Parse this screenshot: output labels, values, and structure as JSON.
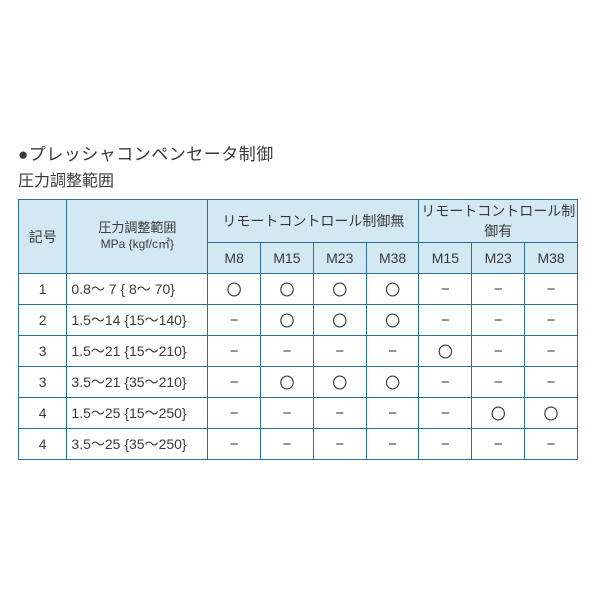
{
  "title": "●プレッシャコンペンセータ制御",
  "subtitle": "圧力調整範囲",
  "border_color": "#2d6e93",
  "header_bg": "#d2e8f2",
  "headers": {
    "code": "記号",
    "range_line1": "圧力調整範囲",
    "range_line2": "MPa {kgf/c㎡}",
    "group_no_remote": "リモートコントロール制御無",
    "group_remote": "リモートコントロール制御有",
    "sub_no_remote": [
      "M8",
      "M15",
      "M23",
      "M38"
    ],
    "sub_remote": [
      "M15",
      "M23",
      "M38"
    ]
  },
  "symbols": {
    "circle": "〇",
    "dash": "−"
  },
  "rows": [
    {
      "code": "1",
      "range": "0.8～  7 {  8～  70}",
      "no_remote": [
        "〇",
        "〇",
        "〇",
        "〇"
      ],
      "remote": [
        "−",
        "−",
        "−"
      ]
    },
    {
      "code": "2",
      "range": "1.5～14 {15～140}",
      "no_remote": [
        "−",
        "〇",
        "〇",
        "〇"
      ],
      "remote": [
        "−",
        "−",
        "−"
      ]
    },
    {
      "code": "3",
      "range": "1.5～21 {15～210}",
      "no_remote": [
        "−",
        "−",
        "−",
        "−"
      ],
      "remote": [
        "〇",
        "−",
        "−"
      ]
    },
    {
      "code": "3",
      "range": "3.5～21 {35～210}",
      "no_remote": [
        "−",
        "〇",
        "〇",
        "〇"
      ],
      "remote": [
        "−",
        "−",
        "−"
      ]
    },
    {
      "code": "4",
      "range": "1.5～25 {15～250}",
      "no_remote": [
        "−",
        "−",
        "−",
        "−"
      ],
      "remote": [
        "−",
        "〇",
        "〇"
      ]
    },
    {
      "code": "4",
      "range": "3.5～25 {35～250}",
      "no_remote": [
        "−",
        "−",
        "−",
        "−"
      ],
      "remote": [
        "−",
        "−",
        "−"
      ]
    }
  ]
}
